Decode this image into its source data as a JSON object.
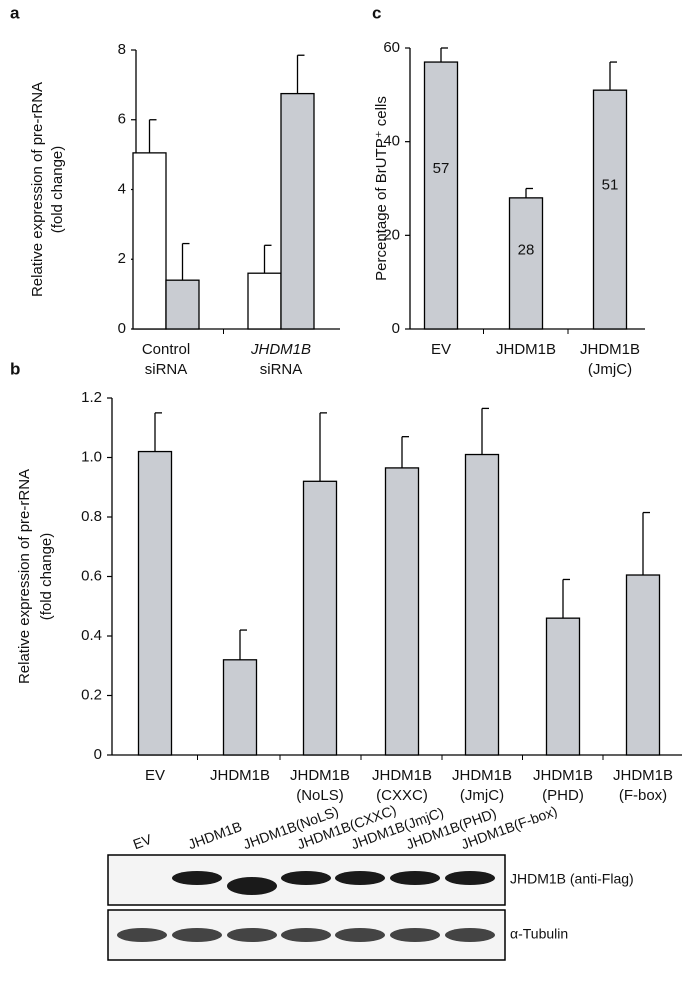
{
  "chart_data": [
    {
      "type": "bar",
      "panel_label": "a",
      "ylabel": [
        "Relative expression of pre-rRNA",
        "(fold change)"
      ],
      "categories": [
        [
          "Control",
          "siRNA"
        ],
        [
          "JHDM1B",
          "siRNA"
        ]
      ],
      "series": [
        {
          "color": "#ffffff",
          "values": [
            5.05,
            1.6
          ],
          "errors": [
            0.95,
            0.8
          ]
        },
        {
          "color": "#c9ccd2",
          "values": [
            1.4,
            6.75
          ],
          "errors": [
            1.05,
            1.1
          ]
        }
      ],
      "ylim": [
        0,
        8
      ],
      "yticks": [
        0,
        2,
        4,
        6,
        8
      ]
    },
    {
      "type": "bar",
      "panel_label": "c",
      "ylabel": [
        "Percentage of BrUTP⁺ cells"
      ],
      "categories": [
        [
          "EV"
        ],
        [
          "JHDM1B"
        ],
        [
          "JHDM1B",
          "(JmjC)"
        ]
      ],
      "series": [
        {
          "color": "#c9ccd2",
          "values": [
            57,
            28,
            51
          ],
          "errors": [
            3,
            2,
            6
          ],
          "value_labels": [
            "57",
            "28",
            "51"
          ]
        }
      ],
      "ylim": [
        0,
        60
      ],
      "yticks": [
        0,
        20,
        40,
        60
      ]
    },
    {
      "type": "bar",
      "panel_label": "b",
      "ylabel": [
        "Relative expression of pre-rRNA",
        "(fold change)"
      ],
      "categories": [
        [
          "EV"
        ],
        [
          "JHDM1B"
        ],
        [
          "JHDM1B",
          "(NoLS)"
        ],
        [
          "JHDM1B",
          "(CXXC)"
        ],
        [
          "JHDM1B",
          "(JmjC)"
        ],
        [
          "JHDM1B",
          "(PHD)"
        ],
        [
          "JHDM1B",
          "(F-box)"
        ]
      ],
      "series": [
        {
          "color": "#c9ccd2",
          "values": [
            1.02,
            0.32,
            0.92,
            0.965,
            1.01,
            0.46,
            0.605
          ],
          "errors": [
            0.13,
            0.1,
            0.23,
            0.105,
            0.155,
            0.13,
            0.21
          ]
        }
      ],
      "ylim": [
        0,
        1.2
      ],
      "yticks": [
        0,
        0.2,
        0.4,
        0.6,
        0.8,
        {
          "value": 1,
          "label": "1.0"
        },
        1.2
      ]
    }
  ],
  "blot": {
    "lanes": [
      "EV",
      "JHDM1B",
      "JHDM1B(NoLS)",
      "JHDM1B(CXXC)",
      "JHDM1B(JmjC)",
      "JHDM1B(PHD)",
      "JHDM1B(F-box)"
    ],
    "rows": [
      "JHDM1B (anti-Flag)",
      "α-Tubulin"
    ]
  }
}
